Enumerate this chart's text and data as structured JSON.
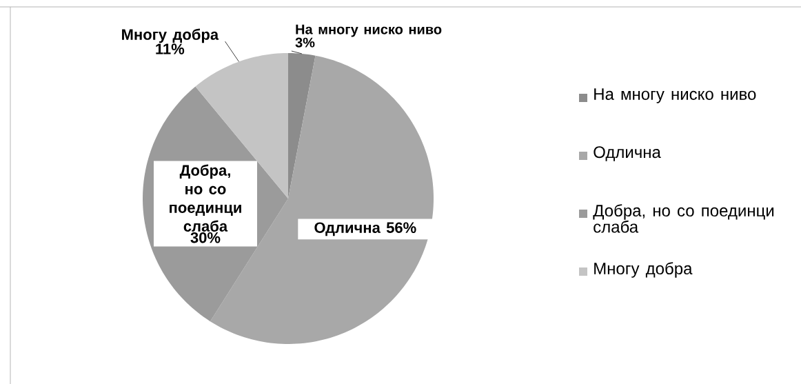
{
  "chart_data": {
    "type": "pie",
    "categories": [
      "На многу ниско ниво",
      "Одлична",
      "Добра, но со поединци слаба",
      "Многу добра"
    ],
    "values": [
      3,
      56,
      30,
      11
    ],
    "colors": [
      "#8c8c8c",
      "#a8a8a8",
      "#9b9b9b",
      "#c4c4c4"
    ],
    "value_labels": [
      "3%",
      "56%",
      "30%",
      "11%"
    ],
    "legend": "right"
  }
}
